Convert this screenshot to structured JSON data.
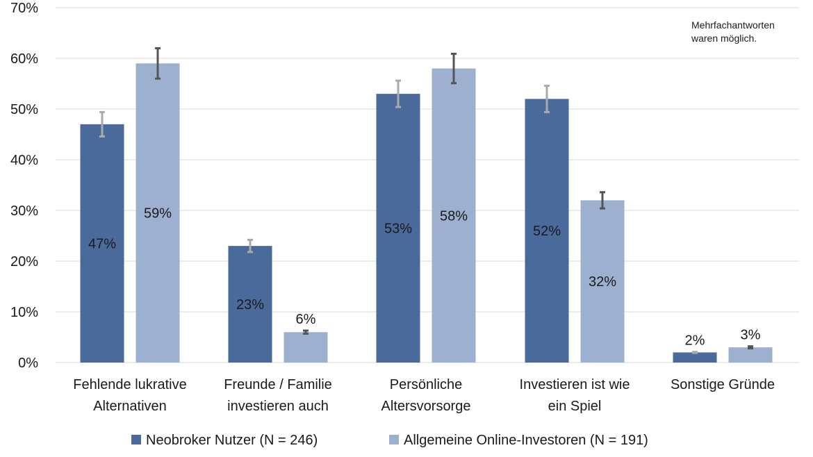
{
  "chart_data": {
    "type": "bar",
    "categories": [
      [
        "Fehlende lukrative",
        "Alternativen"
      ],
      [
        "Freunde / Familie",
        "investieren auch"
      ],
      [
        "Persönliche",
        "Altersvorsorge"
      ],
      [
        "Investieren ist wie",
        "ein Spiel"
      ],
      [
        "Sonstige Gründe"
      ]
    ],
    "series": [
      {
        "name": "Neobroker Nutzer (N = 246)",
        "color": "#4a6a9b",
        "error_bar_color": "#aaaaaa",
        "values": [
          47,
          23,
          53,
          52,
          2
        ],
        "error_low": [
          44.6,
          21.8,
          50.4,
          49.4,
          1.9
        ],
        "error_high": [
          49.4,
          24.2,
          55.6,
          54.6,
          2.1
        ],
        "labels": [
          "47%",
          "23%",
          "53%",
          "52%",
          "2%"
        ]
      },
      {
        "name": "Allgemeine Online-Investoren (N = 191)",
        "color": "#9db0cf",
        "error_bar_color": "#555555",
        "values": [
          59,
          6,
          58,
          32,
          3
        ],
        "error_low": [
          56.0,
          5.7,
          55.1,
          30.4,
          2.8
        ],
        "error_high": [
          62.0,
          6.3,
          60.9,
          33.6,
          3.2
        ],
        "labels": [
          "59%",
          "6%",
          "58%",
          "32%",
          "3%"
        ]
      }
    ],
    "ylim": [
      0,
      70
    ],
    "yticks": [
      0,
      10,
      20,
      30,
      40,
      50,
      60,
      70
    ],
    "ytick_labels": [
      "0%",
      "10%",
      "20%",
      "30%",
      "40%",
      "50%",
      "60%",
      "70%"
    ],
    "grid": true,
    "legend_position": "bottom",
    "annotation": "Mehrfachantworten\nwaren möglich.",
    "gridline_color": "#d9d9d9"
  }
}
